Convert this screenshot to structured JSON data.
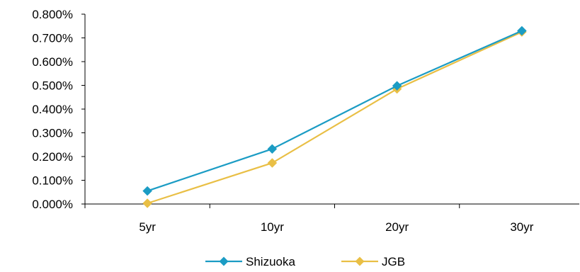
{
  "chart_data": {
    "type": "line",
    "title": "",
    "xlabel": "",
    "ylabel": "",
    "categories": [
      "5yr",
      "10yr",
      "20yr",
      "30yr"
    ],
    "ylim": [
      0,
      0.008
    ],
    "yticks": [
      0,
      0.001,
      0.002,
      0.003,
      0.004,
      0.005,
      0.006,
      0.007,
      0.008
    ],
    "ytick_labels": [
      "0.000%",
      "0.100%",
      "0.200%",
      "0.300%",
      "0.400%",
      "0.500%",
      "0.600%",
      "0.700%",
      "0.800%"
    ],
    "grid": false,
    "legend_position": "bottom",
    "marker": "diamond",
    "series": [
      {
        "name": "Shizuoka",
        "color": "#1b9cc4",
        "values": [
          0.00055,
          0.00232,
          0.00498,
          0.0073
        ]
      },
      {
        "name": "JGB",
        "color": "#e9bf45",
        "values": [
          3e-05,
          0.00173,
          0.00485,
          0.00725
        ]
      }
    ]
  }
}
